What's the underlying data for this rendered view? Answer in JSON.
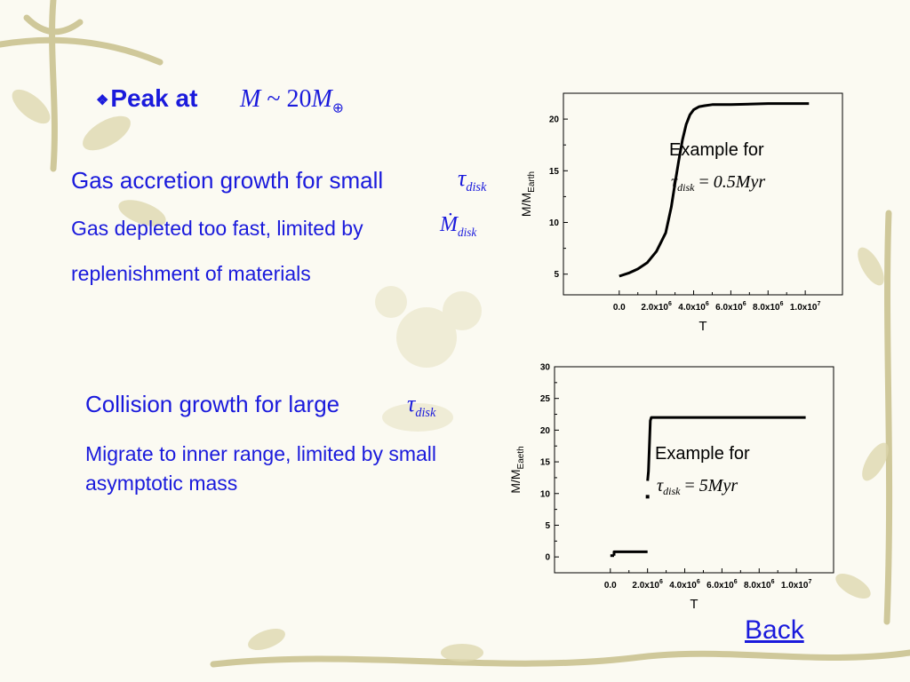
{
  "slide": {
    "title_prefix": "Peak at",
    "title_math_left": "M",
    "title_math_sim": "~",
    "title_math_num": "20",
    "title_math_m": "M",
    "title_math_sub": "⊕",
    "gas_line": "Gas accretion growth for small",
    "tau_symbol": "τ",
    "tau_sub": "disk",
    "gas_depleted_line": "Gas depleted too fast, limited by",
    "mdot_symbol": "Ṁ",
    "mdot_sub": "disk",
    "replenish_line": "replenishment of materials",
    "collision_line": "Collision growth for large",
    "migrate_line": "Migrate to inner range, limited by small asymptotic mass",
    "back_link": "Back"
  },
  "colors": {
    "text_blue": "#1a1adc",
    "background": "#fbfaf2",
    "decor": "#cfc89a"
  },
  "chart_data": [
    {
      "type": "line",
      "xlabel": "T",
      "ylabel": "M/M",
      "ylabel_sub": "Earth",
      "xlim": [
        -3000000,
        12000000
      ],
      "ylim": [
        3,
        22.5
      ],
      "x_ticks": [
        {
          "value": 0,
          "label": "0.0",
          "exp": ""
        },
        {
          "value": 2000000,
          "label": "2.0x10",
          "exp": "6"
        },
        {
          "value": 4000000,
          "label": "4.0x10",
          "exp": "6"
        },
        {
          "value": 6000000,
          "label": "6.0x10",
          "exp": "6"
        },
        {
          "value": 8000000,
          "label": "8.0x10",
          "exp": "6"
        },
        {
          "value": 10000000,
          "label": "1.0x10",
          "exp": "7"
        }
      ],
      "y_ticks": [
        5,
        10,
        15,
        20
      ],
      "annotation": "Example for",
      "annotation_math": {
        "tau": "τ",
        "sub": "disk",
        "eq": "=",
        "value": "0.5Myr"
      },
      "series": [
        {
          "x": [
            0,
            500000,
            1000000,
            1500000,
            2000000,
            2500000,
            2800000,
            3000000,
            3200000,
            3400000,
            3600000,
            3800000,
            4000000,
            4300000,
            4600000,
            5000000,
            6000000,
            8000000,
            10000000,
            10200000
          ],
          "y": [
            4.8,
            5.1,
            5.5,
            6.1,
            7.2,
            9.0,
            11.5,
            13.8,
            16.0,
            18.0,
            19.5,
            20.4,
            20.9,
            21.2,
            21.3,
            21.4,
            21.4,
            21.5,
            21.5,
            21.5
          ]
        }
      ]
    },
    {
      "type": "line",
      "xlabel": "T",
      "ylabel": "M/M",
      "ylabel_sub": "Eaeth",
      "xlim": [
        -3000000,
        12000000
      ],
      "ylim": [
        -2.5,
        30
      ],
      "x_ticks": [
        {
          "value": 0,
          "label": "0.0",
          "exp": ""
        },
        {
          "value": 2000000,
          "label": "2.0x10",
          "exp": "6"
        },
        {
          "value": 4000000,
          "label": "4.0x10",
          "exp": "6"
        },
        {
          "value": 6000000,
          "label": "6.0x10",
          "exp": "6"
        },
        {
          "value": 8000000,
          "label": "8.0x10",
          "exp": "6"
        },
        {
          "value": 10000000,
          "label": "1.0x10",
          "exp": "7"
        }
      ],
      "y_ticks": [
        0,
        5,
        10,
        15,
        20,
        25,
        30
      ],
      "annotation": "Example for",
      "annotation_math": {
        "tau": "τ",
        "sub": "disk",
        "eq": "=",
        "value": "5Myr"
      },
      "series": [
        {
          "x": [
            0,
            200000
          ],
          "y": [
            0.2,
            0.2
          ]
        },
        {
          "x": [
            200000,
            200000,
            2000000
          ],
          "y": [
            0.2,
            0.8,
            0.8
          ]
        },
        {
          "x": [
            2000000,
            2050000,
            2150000,
            2200000,
            10500000
          ],
          "y": [
            12,
            13.5,
            21.5,
            22,
            22
          ]
        }
      ],
      "points": [
        {
          "x": 2000000,
          "y": 9.5
        }
      ]
    }
  ]
}
